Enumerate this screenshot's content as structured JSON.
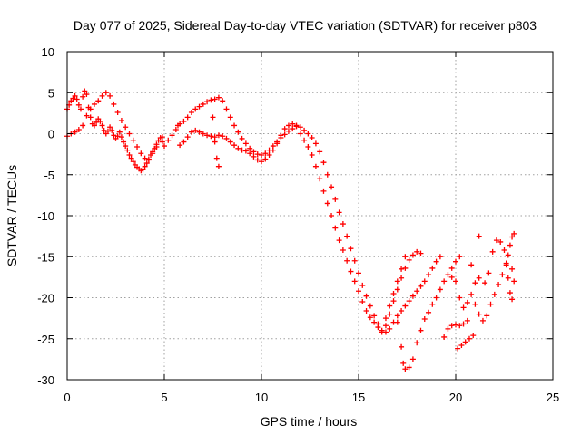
{
  "chart_data": {
    "type": "scatter",
    "title": "Day 077 of 2025, Sidereal Day-to-day VTEC variation (SDTVAR) for receiver p803",
    "xlabel": "GPS time / hours",
    "ylabel": "SDTVAR / TECUs",
    "xlim": [
      0,
      25
    ],
    "ylim": [
      -30,
      10
    ],
    "xticks": [
      "0",
      "5",
      "10",
      "15",
      "20",
      "25"
    ],
    "yticks": [
      "-30",
      "-25",
      "-20",
      "-15",
      "-10",
      "-5",
      "0",
      "5",
      "10"
    ],
    "grid": true,
    "marker": "plus",
    "color": "#ff0000",
    "series": [
      {
        "name": "",
        "points": [
          [
            0.0,
            3.0
          ],
          [
            0.1,
            3.5
          ],
          [
            0.2,
            4.0
          ],
          [
            0.3,
            4.3
          ],
          [
            0.4,
            4.6
          ],
          [
            0.5,
            4.2
          ],
          [
            0.6,
            3.5
          ],
          [
            0.7,
            3.0
          ],
          [
            0.8,
            4.5
          ],
          [
            0.9,
            5.2
          ],
          [
            1.0,
            4.8
          ],
          [
            1.1,
            3.2
          ],
          [
            1.2,
            2.0
          ],
          [
            1.3,
            1.2
          ],
          [
            1.4,
            1.0
          ],
          [
            1.5,
            1.4
          ],
          [
            1.6,
            1.8
          ],
          [
            1.7,
            1.5
          ],
          [
            1.8,
            1.0
          ],
          [
            1.9,
            0.4
          ],
          [
            2.0,
            0.0
          ],
          [
            2.1,
            0.3
          ],
          [
            2.2,
            0.8
          ],
          [
            2.3,
            0.4
          ],
          [
            2.4,
            -0.2
          ],
          [
            2.5,
            -0.6
          ],
          [
            2.6,
            -0.3
          ],
          [
            2.7,
            0.2
          ],
          [
            2.8,
            -0.4
          ],
          [
            2.9,
            -1.0
          ],
          [
            3.0,
            -1.5
          ],
          [
            3.1,
            -2.0
          ],
          [
            3.2,
            -2.6
          ],
          [
            3.3,
            -3.0
          ],
          [
            3.4,
            -3.4
          ],
          [
            3.5,
            -3.8
          ],
          [
            3.6,
            -4.1
          ],
          [
            3.7,
            -4.3
          ],
          [
            3.8,
            -4.5
          ],
          [
            3.9,
            -4.4
          ],
          [
            4.0,
            -4.0
          ],
          [
            4.1,
            -3.6
          ],
          [
            4.2,
            -3.1
          ],
          [
            4.3,
            -2.6
          ],
          [
            4.4,
            -2.2
          ],
          [
            4.5,
            -1.8
          ],
          [
            4.6,
            -1.3
          ],
          [
            4.7,
            -0.8
          ],
          [
            4.8,
            -0.5
          ],
          [
            4.9,
            -1.0
          ],
          [
            5.0,
            -1.5
          ],
          [
            5.2,
            -0.8
          ],
          [
            5.4,
            -0.2
          ],
          [
            5.6,
            0.5
          ],
          [
            5.8,
            1.2
          ],
          [
            6.0,
            1.5
          ],
          [
            6.2,
            2.0
          ],
          [
            6.4,
            2.6
          ],
          [
            6.6,
            3.0
          ],
          [
            6.8,
            3.3
          ],
          [
            7.0,
            3.6
          ],
          [
            7.2,
            3.9
          ],
          [
            7.4,
            4.1
          ],
          [
            7.6,
            4.2
          ],
          [
            7.8,
            4.4
          ],
          [
            8.0,
            4.0
          ],
          [
            8.2,
            3.0
          ],
          [
            8.4,
            2.0
          ],
          [
            8.6,
            1.0
          ],
          [
            8.8,
            0.2
          ],
          [
            9.0,
            -0.6
          ],
          [
            9.2,
            -1.2
          ],
          [
            9.4,
            -1.8
          ],
          [
            9.6,
            -2.2
          ],
          [
            9.8,
            -2.5
          ],
          [
            10.0,
            -2.6
          ],
          [
            10.2,
            -2.4
          ],
          [
            10.4,
            -2.0
          ],
          [
            10.6,
            -1.5
          ],
          [
            10.8,
            -1.0
          ],
          [
            11.0,
            -0.5
          ],
          [
            11.2,
            -0.1
          ],
          [
            11.4,
            0.3
          ],
          [
            11.6,
            0.6
          ],
          [
            11.8,
            0.9
          ],
          [
            12.0,
            0.8
          ],
          [
            12.2,
            0.4
          ],
          [
            12.4,
            0.0
          ],
          [
            12.6,
            -0.5
          ],
          [
            12.8,
            -1.2
          ],
          [
            13.0,
            -2.2
          ],
          [
            13.2,
            -3.5
          ],
          [
            13.4,
            -5.0
          ],
          [
            13.6,
            -6.5
          ],
          [
            13.8,
            -8.0
          ],
          [
            14.0,
            -9.6
          ],
          [
            14.2,
            -11.0
          ],
          [
            14.4,
            -12.5
          ],
          [
            14.6,
            -14.0
          ],
          [
            14.8,
            -15.5
          ],
          [
            15.0,
            -17.0
          ],
          [
            15.2,
            -18.5
          ],
          [
            15.4,
            -19.8
          ],
          [
            15.6,
            -21.0
          ],
          [
            15.8,
            -22.2
          ],
          [
            16.0,
            -23.2
          ],
          [
            16.2,
            -24.0
          ],
          [
            16.4,
            -24.2
          ],
          [
            16.6,
            -23.8
          ],
          [
            16.8,
            -23.0
          ],
          [
            17.0,
            -22.2
          ],
          [
            17.2,
            -21.6
          ],
          [
            17.4,
            -21.0
          ],
          [
            17.6,
            -20.4
          ],
          [
            17.8,
            -19.8
          ],
          [
            18.0,
            -19.2
          ],
          [
            18.2,
            -18.6
          ],
          [
            18.4,
            -18.0
          ],
          [
            18.6,
            -17.2
          ],
          [
            18.8,
            -16.4
          ],
          [
            19.0,
            -15.6
          ],
          [
            19.2,
            -15.0
          ]
        ]
      },
      {
        "name": "",
        "points": [
          [
            0.0,
            -0.3
          ],
          [
            0.2,
            0.0
          ],
          [
            0.4,
            0.2
          ],
          [
            0.6,
            0.5
          ],
          [
            0.8,
            1.0
          ],
          [
            1.0,
            2.2
          ],
          [
            1.2,
            3.0
          ],
          [
            1.4,
            3.6
          ],
          [
            1.6,
            4.0
          ],
          [
            1.8,
            4.6
          ],
          [
            2.0,
            5.0
          ],
          [
            2.2,
            4.6
          ],
          [
            2.4,
            3.6
          ],
          [
            2.6,
            2.6
          ],
          [
            2.8,
            1.6
          ],
          [
            3.0,
            0.8
          ],
          [
            3.2,
            0.0
          ],
          [
            3.4,
            -0.8
          ],
          [
            3.6,
            -1.6
          ],
          [
            3.8,
            -2.4
          ],
          [
            4.0,
            -3.0
          ],
          [
            4.2,
            -3.2
          ],
          [
            4.4,
            -2.4
          ],
          [
            4.6,
            -1.6
          ],
          [
            5.8,
            -1.4
          ],
          [
            6.0,
            -1.0
          ],
          [
            6.2,
            -0.4
          ],
          [
            6.4,
            0.2
          ],
          [
            6.6,
            0.4
          ],
          [
            6.8,
            0.2
          ],
          [
            7.0,
            0.0
          ],
          [
            7.2,
            -0.2
          ],
          [
            7.4,
            -0.3
          ],
          [
            7.6,
            -0.4
          ],
          [
            7.8,
            -0.2
          ],
          [
            8.0,
            -0.3
          ],
          [
            8.2,
            -0.6
          ],
          [
            8.4,
            -1.0
          ],
          [
            8.6,
            -1.4
          ],
          [
            8.8,
            -1.8
          ],
          [
            9.0,
            -2.0
          ],
          [
            9.2,
            -2.1
          ],
          [
            9.4,
            -2.4
          ],
          [
            9.6,
            -2.8
          ],
          [
            9.8,
            -3.2
          ],
          [
            10.0,
            -3.4
          ],
          [
            10.2,
            -3.1
          ],
          [
            10.4,
            -2.6
          ],
          [
            10.6,
            -2.0
          ],
          [
            10.8,
            -1.2
          ],
          [
            11.0,
            -0.2
          ],
          [
            11.2,
            0.6
          ],
          [
            11.4,
            1.0
          ],
          [
            11.6,
            1.2
          ],
          [
            11.8,
            1.0
          ],
          [
            12.0,
            0.0
          ],
          [
            12.2,
            -0.8
          ],
          [
            12.4,
            -1.6
          ],
          [
            12.6,
            -2.6
          ],
          [
            12.8,
            -4.0
          ],
          [
            13.0,
            -5.5
          ],
          [
            13.2,
            -7.0
          ],
          [
            13.4,
            -8.5
          ],
          [
            13.6,
            -10.0
          ],
          [
            13.8,
            -11.5
          ],
          [
            14.0,
            -13.0
          ],
          [
            14.2,
            -14.2
          ],
          [
            14.4,
            -15.5
          ],
          [
            14.6,
            -16.8
          ],
          [
            14.8,
            -18.0
          ],
          [
            15.0,
            -19.2
          ],
          [
            15.2,
            -20.5
          ],
          [
            15.4,
            -21.6
          ],
          [
            15.6,
            -22.4
          ],
          [
            15.8,
            -23.0
          ],
          [
            16.0,
            -23.6
          ],
          [
            16.2,
            -24.2
          ],
          [
            16.4,
            -23.4
          ],
          [
            16.6,
            -22.0
          ],
          [
            16.8,
            -20.4
          ],
          [
            17.0,
            -19.0
          ],
          [
            17.2,
            -17.6
          ],
          [
            17.4,
            -16.4
          ],
          [
            17.6,
            -15.4
          ],
          [
            17.8,
            -14.8
          ],
          [
            18.0,
            -14.4
          ],
          [
            18.2,
            -14.6
          ]
        ]
      },
      {
        "name": "",
        "points": [
          [
            7.5,
            2.0
          ],
          [
            7.6,
            -1.0
          ],
          [
            7.7,
            -3.0
          ],
          [
            7.8,
            -4.0
          ],
          [
            5.7,
            1.0
          ],
          [
            4.9,
            -0.4
          ],
          [
            16.4,
            -22.5
          ],
          [
            16.6,
            -21.0
          ],
          [
            16.8,
            -19.5
          ],
          [
            17.0,
            -18.0
          ],
          [
            17.2,
            -16.5
          ],
          [
            17.4,
            -15.0
          ],
          [
            17.0,
            -23.0
          ],
          [
            17.2,
            -26.0
          ],
          [
            17.3,
            -28.0
          ],
          [
            17.4,
            -28.7
          ],
          [
            17.6,
            -28.5
          ],
          [
            17.8,
            -27.5
          ],
          [
            18.0,
            -25.5
          ],
          [
            18.2,
            -24.0
          ],
          [
            18.4,
            -22.6
          ],
          [
            18.6,
            -21.8
          ],
          [
            18.8,
            -20.8
          ],
          [
            19.0,
            -20.0
          ],
          [
            19.2,
            -19.0
          ],
          [
            19.4,
            -18.0
          ],
          [
            19.6,
            -17.2
          ],
          [
            19.8,
            -16.4
          ],
          [
            20.0,
            -15.6
          ],
          [
            20.2,
            -15.0
          ],
          [
            19.4,
            -24.8
          ],
          [
            19.6,
            -23.8
          ],
          [
            19.8,
            -23.4
          ],
          [
            20.0,
            -23.3
          ],
          [
            20.2,
            -23.4
          ],
          [
            20.4,
            -23.2
          ],
          [
            20.6,
            -22.8
          ],
          [
            19.8,
            -17.5
          ],
          [
            20.0,
            -18.0
          ],
          [
            20.2,
            -20.0
          ],
          [
            20.4,
            -21.2
          ],
          [
            20.6,
            -20.6
          ],
          [
            20.8,
            -19.6
          ],
          [
            21.0,
            -18.2
          ],
          [
            21.2,
            -17.6
          ],
          [
            20.1,
            -26.2
          ],
          [
            20.3,
            -25.8
          ],
          [
            20.5,
            -25.4
          ],
          [
            20.7,
            -25.0
          ],
          [
            20.9,
            -24.6
          ],
          [
            20.8,
            -16.0
          ],
          [
            21.0,
            -20.8
          ],
          [
            21.2,
            -22.0
          ],
          [
            21.4,
            -22.8
          ],
          [
            21.6,
            -22.2
          ],
          [
            21.8,
            -20.8
          ],
          [
            22.0,
            -19.6
          ],
          [
            22.2,
            -18.4
          ],
          [
            22.4,
            -17.2
          ],
          [
            21.2,
            -12.5
          ],
          [
            21.5,
            -18.2
          ],
          [
            21.7,
            -17.0
          ],
          [
            21.9,
            -14.4
          ],
          [
            22.1,
            -13.0
          ],
          [
            22.3,
            -13.2
          ],
          [
            22.5,
            -14.2
          ],
          [
            22.6,
            -15.8
          ],
          [
            22.7,
            -17.6
          ],
          [
            22.8,
            -19.4
          ],
          [
            22.9,
            -20.2
          ],
          [
            22.6,
            -16.0
          ],
          [
            22.7,
            -14.8
          ],
          [
            22.8,
            -13.6
          ],
          [
            22.9,
            -12.6
          ],
          [
            23.0,
            -12.2
          ],
          [
            22.9,
            -16.5
          ],
          [
            23.0,
            -18.0
          ]
        ]
      }
    ]
  }
}
